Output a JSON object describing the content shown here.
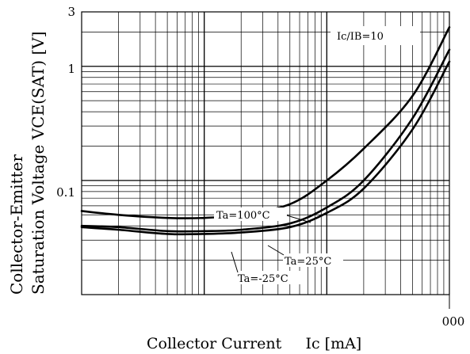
{
  "chart_data": {
    "type": "line",
    "title": "",
    "xlabel": "Collector Current     Ic [mA]",
    "ylabel_line1": "Collector-Emitter",
    "ylabel_line2": "Saturation Voltage   VCE(SAT) [V]",
    "x_scale": "log",
    "y_scale": "log",
    "xlim": [
      1,
      1000
    ],
    "ylim": [
      0.01,
      3
    ],
    "grid": true,
    "x_tick_labels": [
      "000"
    ],
    "y_tick_labels": [
      "3",
      "1",
      "0.1"
    ],
    "condition_label": "Ic/IB=10",
    "series": [
      {
        "name": "Ta=100°C",
        "x": [
          1,
          2,
          5,
          10,
          20,
          50,
          100,
          200,
          500,
          1000
        ],
        "y": [
          0.054,
          0.05,
          0.047,
          0.047,
          0.05,
          0.062,
          0.1,
          0.19,
          0.55,
          2.2
        ]
      },
      {
        "name": "Ta=25°C",
        "x": [
          1,
          2,
          5,
          10,
          20,
          50,
          100,
          200,
          500,
          1000
        ],
        "y": [
          0.04,
          0.039,
          0.036,
          0.036,
          0.037,
          0.042,
          0.058,
          0.1,
          0.35,
          1.4
        ]
      },
      {
        "name": "Ta=-25°C",
        "x": [
          1,
          2,
          5,
          10,
          20,
          50,
          100,
          200,
          500,
          1000
        ],
        "y": [
          0.039,
          0.037,
          0.034,
          0.034,
          0.035,
          0.039,
          0.052,
          0.085,
          0.28,
          1.1
        ]
      }
    ]
  }
}
